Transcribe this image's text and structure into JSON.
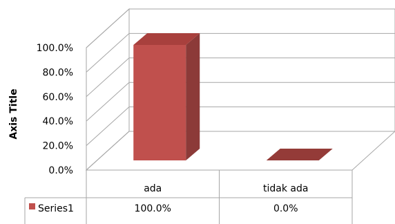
{
  "chart_data": {
    "type": "bar",
    "style": "3d-column",
    "categories": [
      "ada",
      "tidak ada"
    ],
    "series": [
      {
        "name": "Series1",
        "values": [
          100.0,
          0.0
        ],
        "color": "#c0504d"
      }
    ],
    "ylabel": "Axis Title",
    "ylim": [
      0,
      100
    ],
    "yticks": [
      "0.0%",
      "20.0%",
      "40.0%",
      "60.0%",
      "80.0%",
      "100.0%"
    ],
    "grid": true,
    "data_table": {
      "legend_key": "Series1",
      "cells": [
        "100.0%",
        "0.0%"
      ]
    }
  }
}
